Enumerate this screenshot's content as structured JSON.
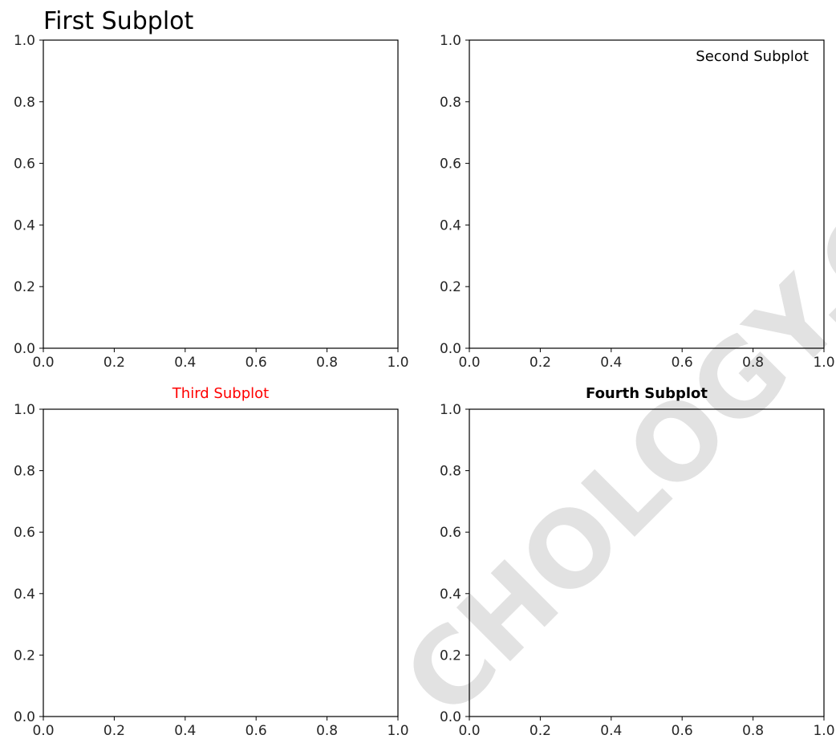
{
  "watermark": "CHOLOGY.CO",
  "colors": {
    "axis": "#000000",
    "tick_label": "#262626",
    "third_title": "#ff0000",
    "watermark": "#d9d9d9"
  },
  "chart_data": [
    {
      "type": "line",
      "title": "First Subplot",
      "title_loc": "left",
      "title_style": "large",
      "series": [],
      "xlim": [
        0.0,
        1.0
      ],
      "ylim": [
        0.0,
        1.0
      ],
      "xticks": [
        "0.0",
        "0.2",
        "0.4",
        "0.6",
        "0.8",
        "1.0"
      ],
      "yticks": [
        "0.0",
        "0.2",
        "0.4",
        "0.6",
        "0.8",
        "1.0"
      ],
      "grid": false
    },
    {
      "type": "line",
      "title": "Second Subplot",
      "title_loc": "right",
      "title_style": "inside",
      "series": [],
      "xlim": [
        0.0,
        1.0
      ],
      "ylim": [
        0.0,
        1.0
      ],
      "xticks": [
        "0.0",
        "0.2",
        "0.4",
        "0.6",
        "0.8",
        "1.0"
      ],
      "yticks": [
        "0.0",
        "0.2",
        "0.4",
        "0.6",
        "0.8",
        "1.0"
      ],
      "grid": false
    },
    {
      "type": "line",
      "title": "Third Subplot",
      "title_loc": "center",
      "title_style": "red",
      "series": [],
      "xlim": [
        0.0,
        1.0
      ],
      "ylim": [
        0.0,
        1.0
      ],
      "xticks": [
        "0.0",
        "0.2",
        "0.4",
        "0.6",
        "0.8",
        "1.0"
      ],
      "yticks": [
        "0.0",
        "0.2",
        "0.4",
        "0.6",
        "0.8",
        "1.0"
      ],
      "grid": false
    },
    {
      "type": "line",
      "title": "Fourth Subplot",
      "title_loc": "center",
      "title_style": "bold",
      "series": [],
      "xlim": [
        0.0,
        1.0
      ],
      "ylim": [
        0.0,
        1.0
      ],
      "xticks": [
        "0.0",
        "0.2",
        "0.4",
        "0.6",
        "0.8",
        "1.0"
      ],
      "yticks": [
        "0.0",
        "0.2",
        "0.4",
        "0.6",
        "0.8",
        "1.0"
      ],
      "grid": false
    }
  ]
}
